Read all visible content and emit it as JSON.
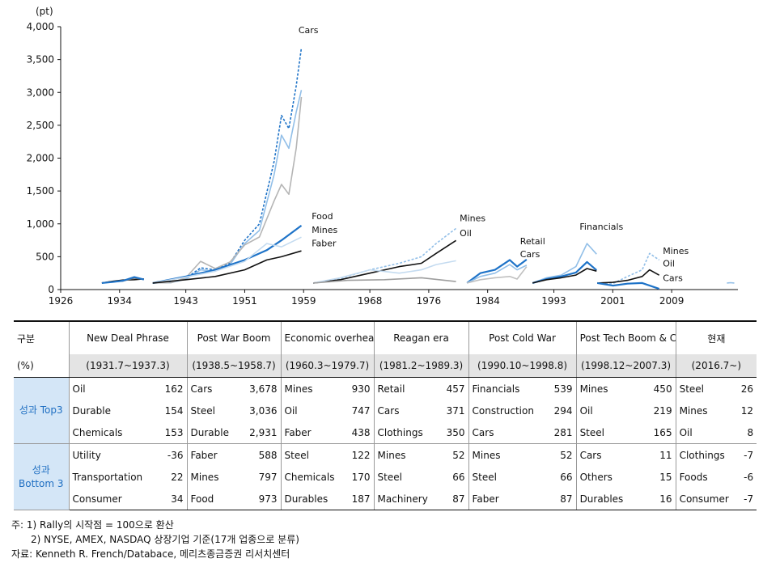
{
  "chart_data": {
    "type": "line",
    "unit_label": "(pt)",
    "ylim": [
      0,
      4000
    ],
    "y_ticks": [
      "4,000",
      "3,500",
      "3,000",
      "2,500",
      "2,000",
      "1,500",
      "1,000",
      "500",
      "0"
    ],
    "y_values": [
      4000,
      3500,
      3000,
      2500,
      2000,
      1500,
      1000,
      500,
      0
    ],
    "x_ticks": [
      "1926",
      "1934",
      "1943",
      "1951",
      "1959",
      "1968",
      "1976",
      "1984",
      "1993",
      "2001",
      "2009"
    ],
    "xlim": [
      1926,
      2018
    ],
    "series": [
      {
        "name": "Oil",
        "color": "#111111",
        "style": "solid",
        "x": [
          1931.6,
          1933,
          1934.5,
          1936,
          1937.3
        ],
        "y": [
          100,
          125,
          145,
          150,
          162
        ]
      },
      {
        "name": "Durable",
        "color": "#777777",
        "style": "solid",
        "x": [
          1931.6,
          1933,
          1934.5,
          1936,
          1937.3
        ],
        "y": [
          100,
          118,
          130,
          175,
          154
        ]
      },
      {
        "name": "Chemicals",
        "color": "#1e73c8",
        "style": "solid",
        "x": [
          1931.6,
          1933,
          1934.5,
          1936,
          1937.3
        ],
        "y": [
          100,
          115,
          135,
          190,
          153
        ]
      },
      {
        "name": "Cars",
        "color": "#1e73c8",
        "style": "dashed",
        "x": [
          1938.5,
          1941,
          1943,
          1945,
          1947,
          1949,
          1951,
          1953,
          1955,
          1956,
          1957,
          1958,
          1958.7
        ],
        "y": [
          100,
          110,
          170,
          330,
          300,
          400,
          750,
          1000,
          1950,
          2650,
          2450,
          3100,
          3678
        ]
      },
      {
        "name": "Steel",
        "color": "#92bfe8",
        "style": "solid",
        "x": [
          1938.5,
          1941,
          1943,
          1945,
          1947,
          1949,
          1951,
          1953,
          1955,
          1956,
          1957,
          1958,
          1958.7
        ],
        "y": [
          100,
          105,
          160,
          300,
          280,
          380,
          700,
          900,
          1750,
          2350,
          2150,
          2700,
          3036
        ]
      },
      {
        "name": "Durable",
        "color": "#b5b5b5",
        "style": "solid",
        "x": [
          1938.5,
          1941,
          1943,
          1945,
          1947,
          1949,
          1951,
          1953,
          1955,
          1956,
          1957,
          1958,
          1958.7
        ],
        "y": [
          100,
          105,
          180,
          430,
          320,
          420,
          680,
          800,
          1350,
          1600,
          1450,
          2150,
          2931
        ]
      },
      {
        "name": "Food",
        "color": "#1e73c8",
        "style": "solid",
        "x": [
          1938.5,
          1943,
          1947,
          1951,
          1954,
          1956,
          1958.7
        ],
        "y": [
          100,
          200,
          300,
          450,
          600,
          750,
          973
        ]
      },
      {
        "name": "Mines",
        "color": "#c4dbf0",
        "style": "solid",
        "x": [
          1938.5,
          1943,
          1947,
          1951,
          1954,
          1956,
          1958.7
        ],
        "y": [
          100,
          190,
          280,
          430,
          700,
          650,
          797
        ]
      },
      {
        "name": "Faber",
        "color": "#111111",
        "style": "solid",
        "x": [
          1938.5,
          1943,
          1947,
          1951,
          1954,
          1956,
          1958.7
        ],
        "y": [
          100,
          150,
          200,
          300,
          450,
          500,
          588
        ]
      },
      {
        "name": "Mines",
        "color": "#92bfe8",
        "style": "dashed",
        "x": [
          1960.3,
          1964,
          1968,
          1972,
          1975,
          1977,
          1979.7
        ],
        "y": [
          100,
          170,
          300,
          400,
          500,
          700,
          930
        ]
      },
      {
        "name": "Oil",
        "color": "#111111",
        "style": "solid",
        "x": [
          1960.3,
          1964,
          1968,
          1972,
          1975,
          1977,
          1979.7
        ],
        "y": [
          100,
          150,
          250,
          350,
          400,
          550,
          747
        ]
      },
      {
        "name": "Faber",
        "color": "#c4dbf0",
        "style": "solid",
        "x": [
          1960.3,
          1964,
          1968,
          1972,
          1975,
          1977,
          1979.7
        ],
        "y": [
          100,
          180,
          300,
          250,
          300,
          380,
          438
        ]
      },
      {
        "name": "Steel",
        "color": "#9e9e9e",
        "style": "solid",
        "x": [
          1960.3,
          1965,
          1970,
          1975,
          1979.7
        ],
        "y": [
          100,
          140,
          150,
          180,
          122
        ]
      },
      {
        "name": "Retail",
        "color": "#1e73c8",
        "style": "solid",
        "x": [
          1981.2,
          1983,
          1985,
          1987,
          1988,
          1989.3
        ],
        "y": [
          100,
          250,
          300,
          450,
          350,
          457
        ]
      },
      {
        "name": "Cars",
        "color": "#92bfe8",
        "style": "solid",
        "x": [
          1981.2,
          1983,
          1985,
          1987,
          1988,
          1989.3
        ],
        "y": [
          100,
          200,
          250,
          380,
          300,
          371
        ]
      },
      {
        "name": "Clothings",
        "color": "#c0c0c0",
        "style": "solid",
        "x": [
          1981.2,
          1983,
          1985,
          1987,
          1988,
          1989.3
        ],
        "y": [
          100,
          150,
          180,
          200,
          160,
          350
        ]
      },
      {
        "name": "Financials",
        "color": "#92bfe8",
        "style": "solid",
        "x": [
          1990.1,
          1992,
          1994,
          1996,
          1997.5,
          1998.8
        ],
        "y": [
          100,
          180,
          220,
          350,
          700,
          539
        ]
      },
      {
        "name": "Construction",
        "color": "#1e73c8",
        "style": "solid",
        "x": [
          1990.1,
          1992,
          1994,
          1996,
          1997.5,
          1998.8
        ],
        "y": [
          100,
          160,
          200,
          260,
          420,
          294
        ]
      },
      {
        "name": "Cars",
        "color": "#111111",
        "style": "solid",
        "x": [
          1990.1,
          1992,
          1994,
          1996,
          1997.5,
          1998.8
        ],
        "y": [
          100,
          150,
          180,
          220,
          320,
          281
        ]
      },
      {
        "name": "Mines",
        "color": "#92bfe8",
        "style": "dashed",
        "x": [
          1998.9,
          2001,
          2003,
          2005,
          2006,
          2007.3
        ],
        "y": [
          100,
          90,
          200,
          300,
          550,
          450
        ]
      },
      {
        "name": "Oil",
        "color": "#111111",
        "style": "solid",
        "x": [
          1998.9,
          2001,
          2003,
          2005,
          2006,
          2007.3
        ],
        "y": [
          100,
          110,
          140,
          200,
          300,
          219
        ]
      },
      {
        "name": "Cars",
        "color": "#1e73c8",
        "style": "solid",
        "x": [
          1998.9,
          2001,
          2003,
          2005,
          2007.3
        ],
        "y": [
          100,
          60,
          90,
          100,
          11
        ]
      },
      {
        "name": "Current",
        "color": "#92bfe8",
        "style": "solid",
        "x": [
          2016.5,
          2017,
          2017.5
        ],
        "y": [
          100,
          105,
          100
        ]
      }
    ],
    "annotations": [
      {
        "text": "Cars",
        "x": 1958.3,
        "y": 3900
      },
      {
        "text": "Food",
        "x": 1960.1,
        "y": 1070
      },
      {
        "text": "Mines",
        "x": 1960.1,
        "y": 860
      },
      {
        "text": "Faber",
        "x": 1960.1,
        "y": 660
      },
      {
        "text": "Mines",
        "x": 1980.2,
        "y": 1040
      },
      {
        "text": "Oil",
        "x": 1980.2,
        "y": 810
      },
      {
        "text": "Retail",
        "x": 1988.4,
        "y": 690
      },
      {
        "text": "Cars",
        "x": 1988.4,
        "y": 490
      },
      {
        "text": "Financials",
        "x": 1996.5,
        "y": 910
      },
      {
        "text": "Mines",
        "x": 2007.8,
        "y": 540
      },
      {
        "text": "Oil",
        "x": 2007.8,
        "y": 350
      },
      {
        "text": "Cars",
        "x": 2007.8,
        "y": 130
      }
    ]
  },
  "table": {
    "header_label": "구분",
    "unit_label": "(%)",
    "periods": [
      {
        "name": "New Deal Phrase",
        "range": "(1931.7~1937.3)"
      },
      {
        "name": "Post War Boom",
        "range": "(1938.5~1958.7)"
      },
      {
        "name": "Economic overheating",
        "range": "(1960.3~1979.7)"
      },
      {
        "name": "Reagan era",
        "range": "(1981.2~1989.3)"
      },
      {
        "name": "Post Cold War",
        "range": "(1990.10~1998.8)"
      },
      {
        "name": "Post Tech Boom & China Growth",
        "range": "(1998.12~2007.3)"
      },
      {
        "name": "현재",
        "range": "(2016.7~)"
      }
    ],
    "groups": [
      {
        "label": "성과 Top3",
        "rows": [
          [
            [
              "Oil",
              "162"
            ],
            [
              "Cars",
              "3,678"
            ],
            [
              "Mines",
              "930"
            ],
            [
              "Retail",
              "457"
            ],
            [
              "Financials",
              "539"
            ],
            [
              "Mines",
              "450"
            ],
            [
              "Steel",
              "26"
            ]
          ],
          [
            [
              "Durable",
              "154"
            ],
            [
              "Steel",
              "3,036"
            ],
            [
              "Oil",
              "747"
            ],
            [
              "Cars",
              "371"
            ],
            [
              "Construction",
              "294"
            ],
            [
              "Oil",
              "219"
            ],
            [
              "Mines",
              "12"
            ]
          ],
          [
            [
              "Chemicals",
              "153"
            ],
            [
              "Durable",
              "2,931"
            ],
            [
              "Faber",
              "438"
            ],
            [
              "Clothings",
              "350"
            ],
            [
              "Cars",
              "281"
            ],
            [
              "Steel",
              "165"
            ],
            [
              "Oil",
              "8"
            ]
          ]
        ]
      },
      {
        "label": "성과 Bottom 3",
        "rows": [
          [
            [
              "Utility",
              "-36"
            ],
            [
              "Faber",
              "588"
            ],
            [
              "Steel",
              "122"
            ],
            [
              "Mines",
              "52"
            ],
            [
              "Mines",
              "52"
            ],
            [
              "Cars",
              "11"
            ],
            [
              "Clothings",
              "-7"
            ]
          ],
          [
            [
              "Transportation",
              "22"
            ],
            [
              "Mines",
              "797"
            ],
            [
              "Chemicals",
              "170"
            ],
            [
              "Steel",
              "66"
            ],
            [
              "Steel",
              "66"
            ],
            [
              "Others",
              "15"
            ],
            [
              "Foods",
              "-6"
            ]
          ],
          [
            [
              "Consumer",
              "34"
            ],
            [
              "Food",
              "973"
            ],
            [
              "Durables",
              "187"
            ],
            [
              "Machinery",
              "87"
            ],
            [
              "Faber",
              "87"
            ],
            [
              "Durables",
              "16"
            ],
            [
              "Consumer",
              "-7"
            ]
          ]
        ]
      }
    ]
  },
  "notes": {
    "note1": "주: 1) Rally의 시작점 = 100으로 환산",
    "note2": "2) NYSE, AMEX, NASDAQ 상장기업 기준(17개 업종으로 분류)",
    "source": "자료: Kenneth R. French/Databace, 메리츠종금증권 리서치센터"
  }
}
